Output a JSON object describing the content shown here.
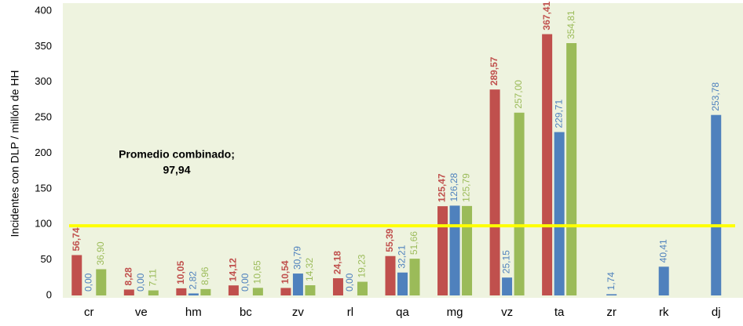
{
  "chart_data": {
    "type": "bar",
    "y_label": "Incidentes con DLP / millón de HH",
    "categories": [
      "cr",
      "ve",
      "hm",
      "bc",
      "zv",
      "rl",
      "qa",
      "mg",
      "vz",
      "ta",
      "zr",
      "rk",
      "dj"
    ],
    "series": [
      {
        "color": "#c0504d",
        "values": [
          56.74,
          8.28,
          10.05,
          14.12,
          10.54,
          24.18,
          55.39,
          125.47,
          289.57,
          367.41,
          null,
          null,
          null
        ],
        "value_labels": [
          "56,74",
          "8,28",
          "10,05",
          "14,12",
          "10,54",
          "24,18",
          "55,39",
          "125,47",
          "289,57",
          "367,41",
          null,
          null,
          null
        ]
      },
      {
        "color": "#4f81bd",
        "values": [
          0,
          0,
          2.82,
          0,
          30.79,
          0,
          32.21,
          126.28,
          25.15,
          229.71,
          1.74,
          40.41,
          253.78
        ],
        "value_labels": [
          "0,00",
          "0,00",
          "2,82",
          "0,00",
          "30,79",
          "0,00",
          "32,21",
          "126,28",
          "25,15",
          "229,71",
          "1,74",
          "40,41",
          "253,78"
        ]
      },
      {
        "color": "#9bbb59",
        "values": [
          36.9,
          7.11,
          8.96,
          10.65,
          14.32,
          19.23,
          51.66,
          125.79,
          257,
          354.81,
          null,
          null,
          null
        ],
        "value_labels": [
          "36,90",
          "7,11",
          "8,96",
          "10,65",
          "14,32",
          "19,23",
          "51,66",
          "125,79",
          "257,00",
          "354,81",
          null,
          null,
          null
        ]
      }
    ],
    "reference_line": {
      "value": 97.94,
      "color": "#ffff00",
      "label_lines": [
        "Promedio combinado;",
        "97,94"
      ]
    },
    "ylim": [
      0,
      400
    ],
    "yticks": [
      0,
      50,
      100,
      150,
      200,
      250,
      300,
      350,
      400
    ],
    "grid": false
  }
}
